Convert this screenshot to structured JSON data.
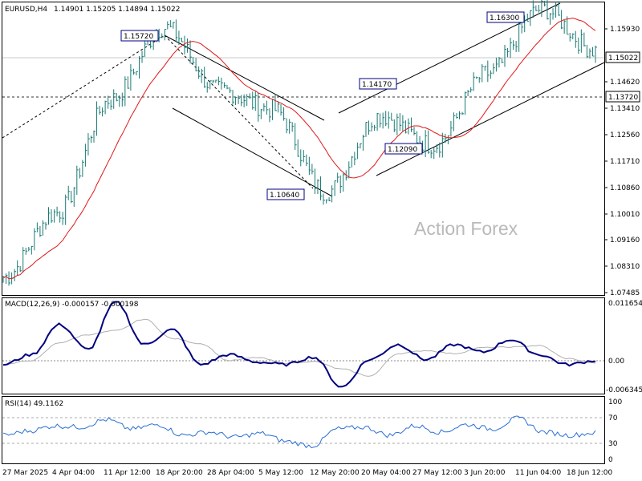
{
  "colors": {
    "background": "#ffffff",
    "candles": "#1a7a74",
    "ma_line": "#e01818",
    "macd_line": "#000080",
    "signal_line": "#b0b0b0",
    "rsi_line": "#2a6fd6",
    "channel_lines": "#000000",
    "grid_dash": "#555555",
    "price_tag_bg": "#ffffff",
    "label_border": "#000080"
  },
  "watermark": "Action Forex",
  "main_panel": {
    "header": {
      "symbol": "EURUSD,H4",
      "values": "1.14901 1.15205 1.14894 1.15022"
    },
    "current_price_tag": "1.15022",
    "level_tag": "1.13720",
    "y_ticks": [
      "1.15930",
      "1.14620",
      "1.13410",
      "1.12560",
      "1.11710",
      "1.10860",
      "1.10010",
      "1.09160",
      "1.08310",
      "1.07485"
    ],
    "pivot_labels": [
      "1.15720",
      "1.10640",
      "1.14170",
      "1.12090",
      "1.16300"
    ]
  },
  "macd_panel": {
    "header": "MACD(12,26,9) -0.000157 -0.000198",
    "y_ticks": [
      "0.011654",
      "0.00",
      "-0.006345"
    ]
  },
  "rsi_panel": {
    "header": "RSI(14) 49.1162",
    "y_ticks": [
      "100",
      "70",
      "30",
      "0"
    ]
  },
  "x_ticks": [
    "27 Mar 2025",
    "4 Apr 04:00",
    "11 Apr 12:00",
    "18 Apr 20:00",
    "28 Apr 04:00",
    "5 May 12:00",
    "12 May 20:00",
    "20 May 04:00",
    "27 May 12:00",
    "3 Jun 20:00",
    "11 Jun 04:00",
    "18 Jun 12:00"
  ],
  "chart_data": [
    {
      "type": "candlestick",
      "title": "EURUSD,H4",
      "ylim": [
        1.0745,
        1.165
      ],
      "ma_overlay": "red moving average",
      "key_points": [
        {
          "x": "27 Mar 2025",
          "y": 1.08
        },
        {
          "x": "4 Apr 04:00",
          "y": 1.1
        },
        {
          "x": "11 Apr 12:00",
          "y": 1.135
        },
        {
          "x": "18 Apr 20:00",
          "y": 1.1572
        },
        {
          "x": "28 Apr 04:00",
          "y": 1.138
        },
        {
          "x": "5 May 12:00",
          "y": 1.132
        },
        {
          "x": "12 May 20:00",
          "y": 1.1064
        },
        {
          "x": "20 May 04:00",
          "y": 1.13
        },
        {
          "x": "27 May 12:00",
          "y": 1.1209
        },
        {
          "x": "3 Jun 20:00",
          "y": 1.143
        },
        {
          "x": "11 Jun 04:00",
          "y": 1.163
        },
        {
          "x": "18 Jun 12:00",
          "y": 1.1502
        }
      ],
      "annotations": [
        {
          "label": "1.15720",
          "value": 1.1572
        },
        {
          "label": "1.10640",
          "value": 1.1064
        },
        {
          "label": "1.14170",
          "value": 1.1417
        },
        {
          "label": "1.12090",
          "value": 1.1209
        },
        {
          "label": "1.16300",
          "value": 1.163
        }
      ],
      "horizontal_levels": [
        1.15022,
        1.1372
      ]
    },
    {
      "type": "line",
      "title": "MACD(12,26,9) -0.000157 -0.000198",
      "ylim": [
        -0.006345,
        0.011654
      ],
      "series": [
        {
          "name": "MACD",
          "values": [
            -0.001,
            0.001,
            0.007,
            0.002,
            0.0115,
            0.003,
            0.006,
            -0.001,
            0.001,
            -0.0005,
            -0.001,
            0.0005,
            -0.0055,
            0.0,
            0.003,
            0.0,
            0.003,
            0.0015,
            0.004,
            0.001,
            -0.001,
            -0.0002
          ]
        }
      ]
    },
    {
      "type": "line",
      "title": "RSI(14) 49.1162",
      "ylim": [
        0,
        100
      ],
      "series": [
        {
          "name": "RSI",
          "values": [
            45,
            52,
            60,
            58,
            70,
            55,
            62,
            45,
            50,
            42,
            48,
            35,
            28,
            55,
            58,
            45,
            60,
            50,
            62,
            55,
            72,
            50,
            45,
            49
          ]
        }
      ]
    }
  ]
}
